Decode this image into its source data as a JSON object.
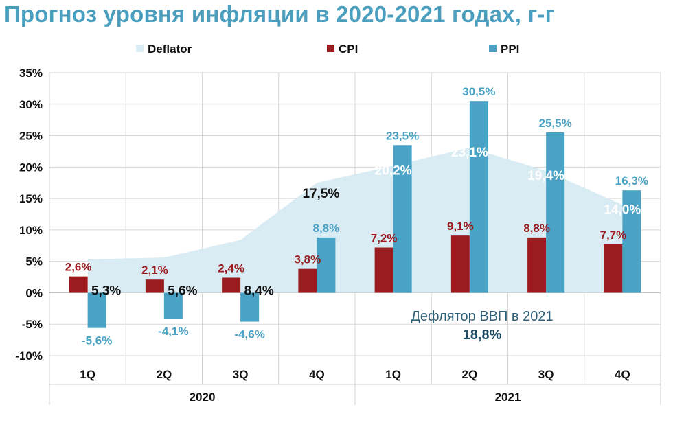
{
  "title": "Прогноз уровня инфляции в 2020-2021 годах, г-г",
  "colors": {
    "deflator": "#d9ecf3",
    "cpi": "#9b1b1f",
    "ppi": "#4aa3c4",
    "title": "#4a9fbf"
  },
  "chart_data": {
    "type": "bar",
    "categories": [
      "1Q",
      "2Q",
      "3Q",
      "4Q",
      "1Q",
      "2Q",
      "3Q",
      "4Q"
    ],
    "groups": [
      {
        "label": "2020",
        "span": [
          0,
          3
        ]
      },
      {
        "label": "2021",
        "span": [
          4,
          7
        ]
      }
    ],
    "series": [
      {
        "name": "Deflator",
        "type": "area",
        "values": [
          5.3,
          5.6,
          8.4,
          17.5,
          20.2,
          23.1,
          19.4,
          14.0
        ],
        "labels": [
          "5,3%",
          "5,6%",
          "8,4%",
          "17,5%",
          "20,2%",
          "23,1%",
          "19,4%",
          "14,0%"
        ]
      },
      {
        "name": "CPI",
        "type": "bar",
        "values": [
          2.6,
          2.1,
          2.4,
          3.8,
          7.2,
          9.1,
          8.8,
          7.7
        ],
        "labels": [
          "2,6%",
          "2,1%",
          "2,4%",
          "3,8%",
          "7,2%",
          "9,1%",
          "8,8%",
          "7,7%"
        ]
      },
      {
        "name": "PPI",
        "type": "bar",
        "values": [
          -5.6,
          -4.1,
          -4.6,
          8.8,
          23.5,
          30.5,
          25.5,
          16.3
        ],
        "labels": [
          "-5,6%",
          "-4,1%",
          "-4,6%",
          "8,8%",
          "23,5%",
          "30,5%",
          "25,5%",
          "16,3%"
        ]
      }
    ],
    "y_ticks": [
      "35%",
      "30%",
      "25%",
      "20%",
      "15%",
      "10%",
      "5%",
      "0%",
      "-5%",
      "-10%"
    ],
    "ylim": [
      -10,
      35
    ],
    "grid": true,
    "legend_position": "top",
    "annotation": {
      "text": "Дефлятор ВВП в 2021",
      "value": "18,8%"
    }
  }
}
